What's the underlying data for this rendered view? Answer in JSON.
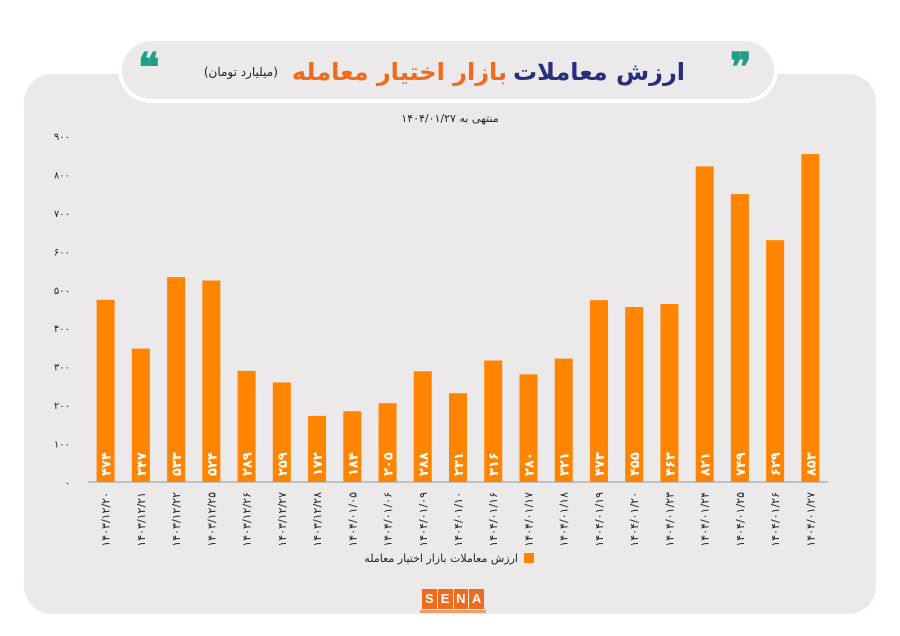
{
  "header": {
    "title_main": "ارزش معاملات",
    "title_accent": "بازار اختیار معامله",
    "unit": "(میلیارد تومان)",
    "quote_left": "❝",
    "quote_right": "❞"
  },
  "logo": {
    "letters": [
      "S",
      "E",
      "N",
      "A"
    ]
  },
  "colors": {
    "bar": "#ff8500",
    "panel": "#ebe9ea",
    "title": "#2b2e7a",
    "accent": "#f26b1d",
    "quote": "#1f9e8a"
  },
  "chart_data": {
    "type": "bar",
    "subtitle": "منتهی به ۱۴۰۴/۰۱/۲۷",
    "ylim": [
      0,
      900
    ],
    "yticks": [
      "۰",
      "۱۰۰",
      "۲۰۰",
      "۳۰۰",
      "۴۰۰",
      "۵۰۰",
      "۶۰۰",
      "۷۰۰",
      "۸۰۰",
      "۹۰۰"
    ],
    "grid": false,
    "legend_position": "bottom",
    "categories": [
      "۱۴۰۳/۱۲/۲۰",
      "۱۴۰۳/۱۲/۲۱",
      "۱۴۰۳/۱۲/۲۲",
      "۱۴۰۳/۱۲/۲۵",
      "۱۴۰۳/۱۲/۲۶",
      "۱۴۰۳/۱۲/۲۷",
      "۱۴۰۳/۱۲/۲۸",
      "۱۴۰۴/۰۱/۰۵",
      "۱۴۰۴/۰۱/۰۶",
      "۱۴۰۴/۰۱/۰۹",
      "۱۴۰۴/۰۱/۱۰",
      "۱۴۰۴/۰۱/۱۶",
      "۱۴۰۴/۰۱/۱۷",
      "۱۴۰۴/۰۱/۱۸",
      "۱۴۰۴/۰۱/۱۹",
      "۱۴۰۴/۰۱/۲۰",
      "۱۴۰۴/۰۱/۲۳",
      "۱۴۰۴/۰۱/۲۴",
      "۱۴۰۴/۰۱/۲۵",
      "۱۴۰۴/۰۱/۲۶",
      "۱۴۰۴/۰۱/۲۷"
    ],
    "series": [
      {
        "name": "ارزش معاملات بازار اختیار معامله",
        "values": [
          474,
          347,
          533,
          524,
          289,
          259,
          172,
          184,
          205,
          288,
          231,
          316,
          280,
          321,
          473,
          455,
          463,
          821,
          749,
          629,
          853
        ],
        "value_labels": [
          "۴۷۴",
          "۳۴۷",
          "۵۳۳",
          "۵۲۴",
          "۲۸۹",
          "۲۵۹",
          "۱۷۲",
          "۱۸۴",
          "۲۰۵",
          "۲۸۸",
          "۲۳۱",
          "۳۱۶",
          "۲۸۰",
          "۳۲۱",
          "۴۷۳",
          "۴۵۵",
          "۴۶۳",
          "۸۲۱",
          "۷۴۹",
          "۶۲۹",
          "۸۵۳"
        ]
      }
    ]
  }
}
